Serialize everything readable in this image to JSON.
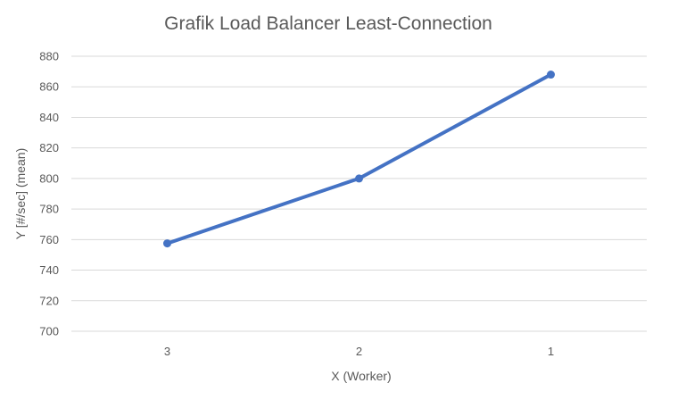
{
  "chart_data": {
    "type": "line",
    "title": "Grafik Load Balancer Least-Connection",
    "xlabel": "X (Worker)",
    "ylabel": "Y [#/sec] (mean)",
    "categories": [
      "3",
      "2",
      "1"
    ],
    "series": [
      {
        "values": [
          757.5,
          800,
          868
        ]
      }
    ],
    "ylim": [
      700,
      880
    ],
    "yticks": [
      700,
      720,
      740,
      760,
      780,
      800,
      820,
      840,
      860,
      880
    ],
    "grid": true,
    "legend": "none",
    "colors": {
      "line": "#4472C4",
      "grid": "#D9D9D9",
      "text": "#595959"
    }
  }
}
